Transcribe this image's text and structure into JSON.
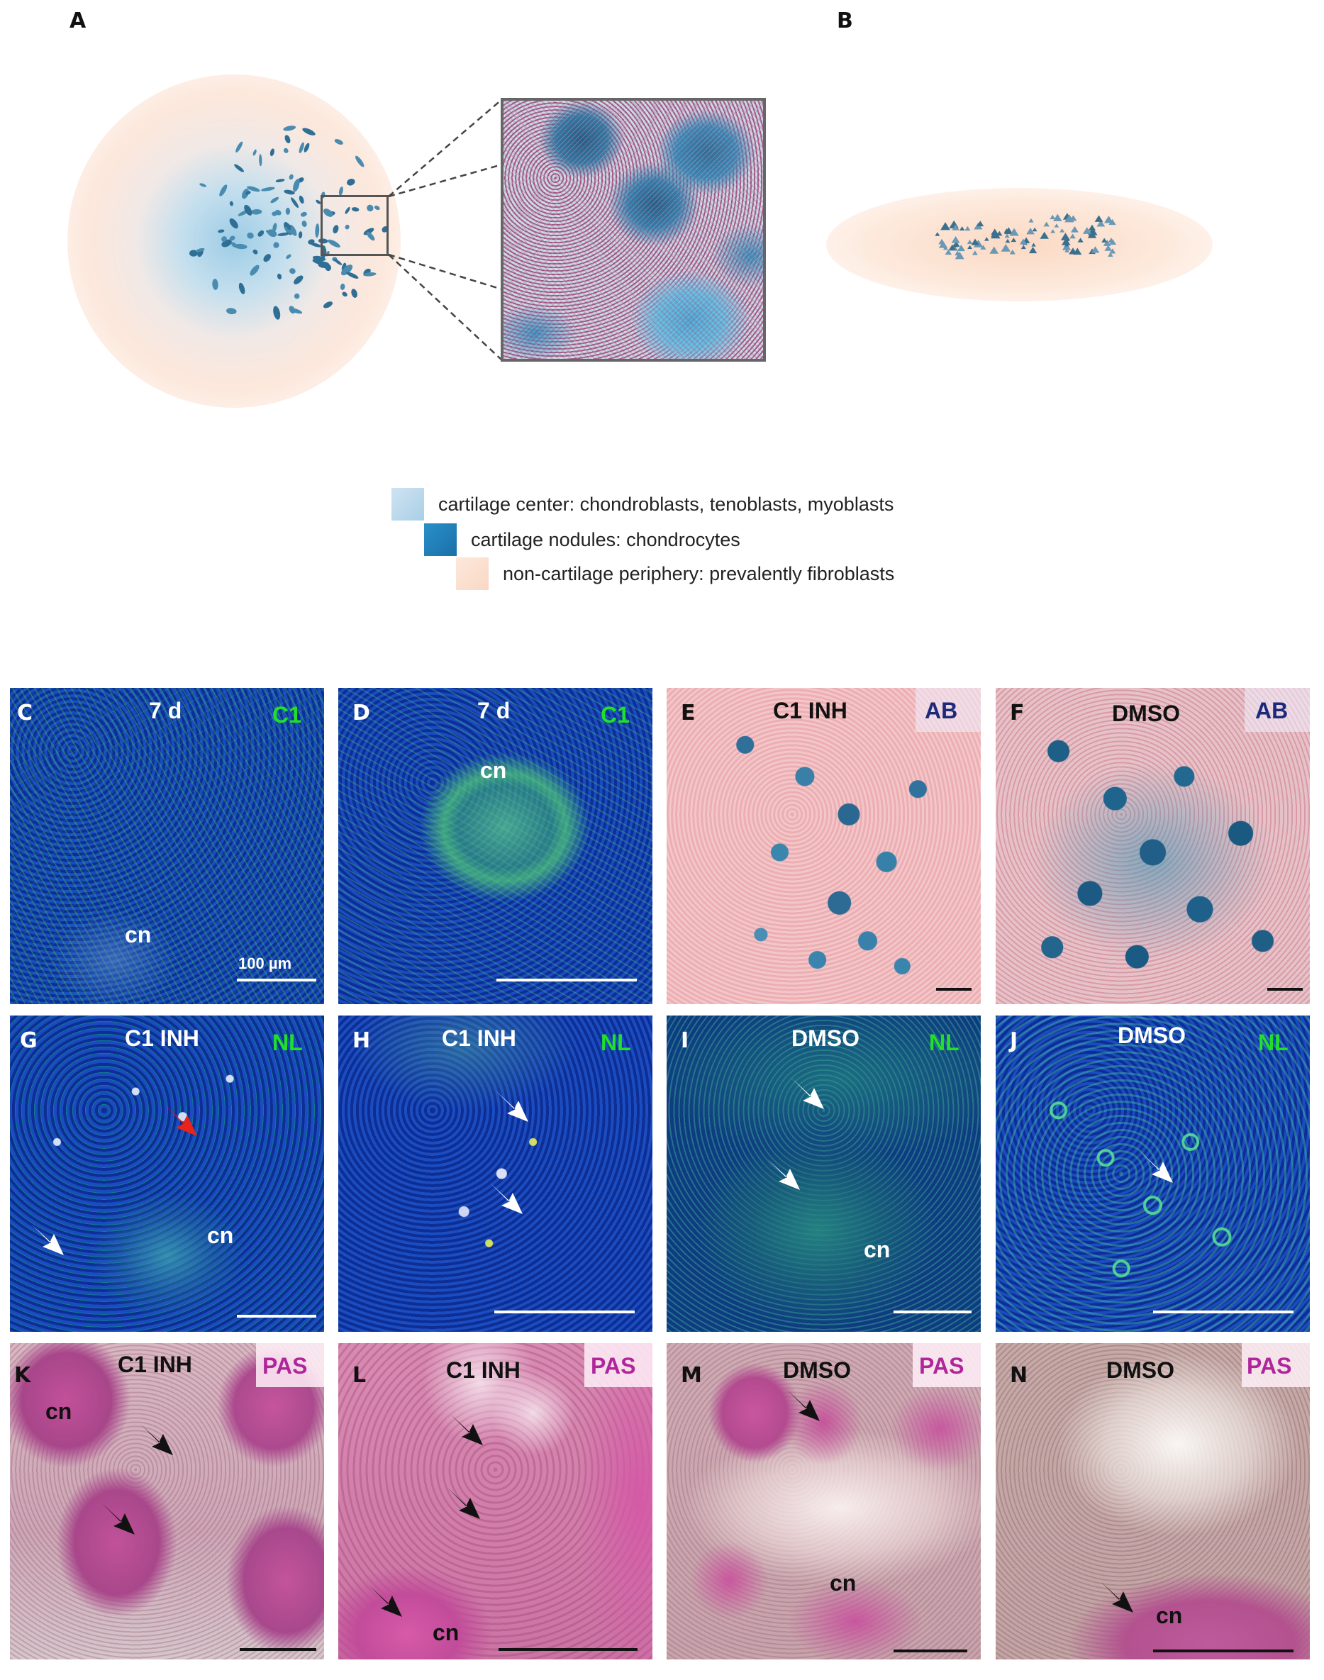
{
  "figure": {
    "panel_letters": [
      "A",
      "B",
      "C",
      "D",
      "E",
      "F",
      "G",
      "H",
      "I",
      "J",
      "K",
      "L",
      "M",
      "N"
    ]
  },
  "legend": [
    {
      "text": "cartilage center: chondroblasts, tenoblasts, myoblasts",
      "color": "#bcd9ec"
    },
    {
      "text": "cartilage nodules: chondrocytes",
      "color": "#1f83c0"
    },
    {
      "text": "non-cartilage periphery: prevalently fibroblasts",
      "color": "#fbe0d0"
    }
  ],
  "panels": {
    "C": {
      "condition": "7 d",
      "stain": "C1",
      "nodule": "cn",
      "scale": "100 µm"
    },
    "D": {
      "condition": "7 d",
      "stain": "C1",
      "nodule": "cn"
    },
    "E": {
      "condition": "C1 INH",
      "stain": "AB"
    },
    "F": {
      "condition": "DMSO",
      "stain": "AB"
    },
    "G": {
      "condition": "C1 INH",
      "stain": "NL",
      "nodule": "cn"
    },
    "H": {
      "condition": "C1 INH",
      "stain": "NL"
    },
    "I": {
      "condition": "DMSO",
      "stain": "NL",
      "nodule": "cn"
    },
    "J": {
      "condition": "DMSO",
      "stain": "NL"
    },
    "K": {
      "condition": "C1 INH",
      "stain": "PAS",
      "nodule": "cn"
    },
    "L": {
      "condition": "C1 INH",
      "stain": "PAS",
      "nodule": "cn"
    },
    "M": {
      "condition": "DMSO",
      "stain": "PAS",
      "nodule": "cn"
    },
    "N": {
      "condition": "DMSO",
      "stain": "PAS",
      "nodule": "cn"
    }
  },
  "colors": {
    "fluor_label": "#22e02a",
    "ab_label": "#1d2a7a",
    "pas_label": "#b0269a",
    "white": "#ffffff",
    "black": "#111111"
  }
}
